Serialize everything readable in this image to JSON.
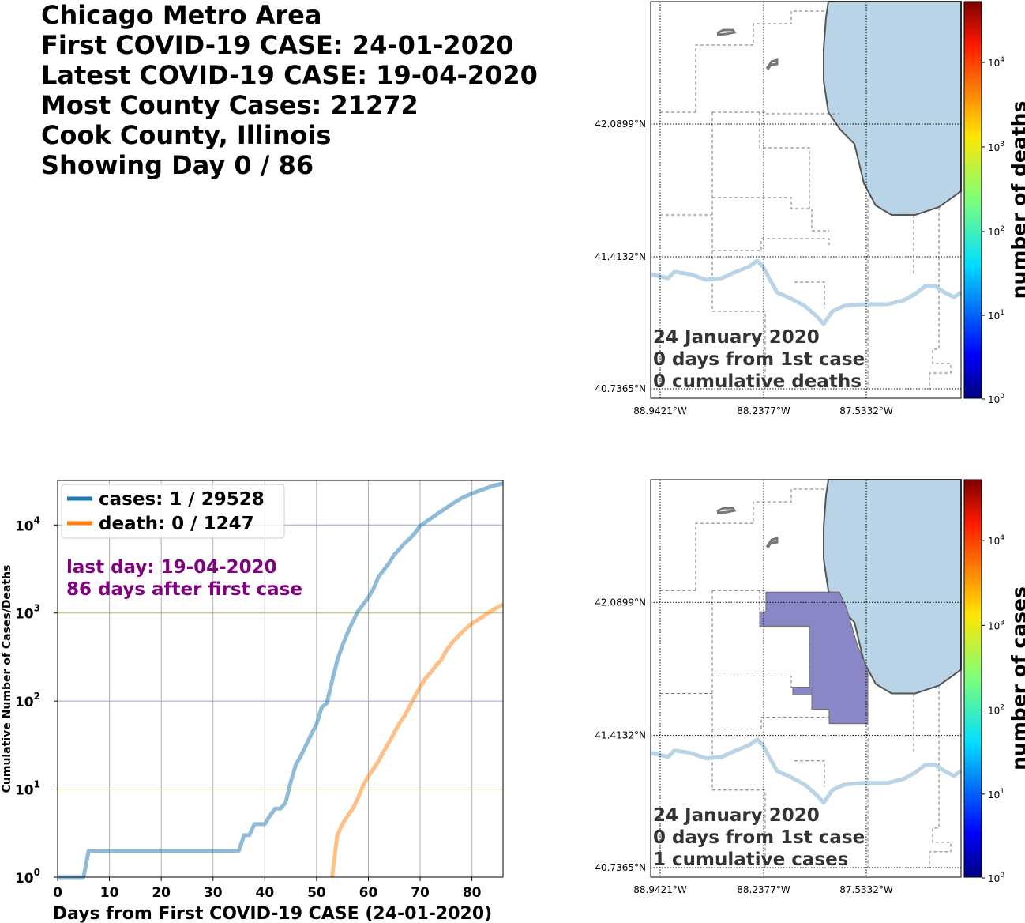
{
  "header": {
    "lines": [
      "Chicago Metro Area",
      "First COVID-19 CASE: 24-01-2020",
      "Latest COVID-19 CASE: 19-04-2020",
      "Most County Cases: 21272",
      "Cook County, Illinois",
      "Showing Day 0 / 86"
    ]
  },
  "maps": [
    {
      "lat_labels": [
        "42.0899°N",
        "41.4132°N",
        "40.7365°N"
      ],
      "lon_labels": [
        "88.9421°W",
        "88.2377°W",
        "87.5332°W"
      ],
      "overlay": [
        "24 January 2020",
        "0 days from 1st case",
        "0 cumulative deaths"
      ],
      "colorbar_label": "number of deaths",
      "colorbar_ticks": [
        "10",
        "10",
        "10",
        "10",
        "10"
      ],
      "colorbar_exps": [
        "0",
        "1",
        "2",
        "3",
        "4"
      ],
      "highlight_county": false
    },
    {
      "lat_labels": [
        "42.0899°N",
        "41.4132°N",
        "40.7365°N"
      ],
      "lon_labels": [
        "88.9421°W",
        "88.2377°W",
        "87.5332°W"
      ],
      "overlay": [
        "24 January 2020",
        "0 days from 1st case",
        "1 cumulative cases"
      ],
      "colorbar_label": "number of cases",
      "colorbar_ticks": [
        "10",
        "10",
        "10",
        "10",
        "10"
      ],
      "colorbar_exps": [
        "0",
        "1",
        "2",
        "3",
        "4"
      ],
      "highlight_county": true,
      "highlight_color": "#8a87c7"
    }
  ],
  "chart_data": {
    "type": "line",
    "xlabel": "Days from First COVID-19 CASE (24-01-2020)",
    "ylabel": "Cumulative Number of Cases/Deaths",
    "xlim": [
      0,
      86
    ],
    "ylim": [
      1,
      32000
    ],
    "yscale": "log",
    "grid": true,
    "xticks": [
      0,
      10,
      20,
      30,
      40,
      50,
      60,
      70,
      80
    ],
    "yticks": [
      1,
      10,
      100,
      1000,
      10000
    ],
    "ytick_exps": [
      "0",
      "1",
      "2",
      "3",
      "4"
    ],
    "legend_position": "top-left",
    "annotation": [
      "last day: 19-04-2020",
      "86 days after first case"
    ],
    "annotation_color": "#800080",
    "series": [
      {
        "name": "cases: 1 / 29528",
        "color": "#1f77b4",
        "x": [
          0,
          5,
          6,
          35,
          36,
          37,
          38,
          40,
          41,
          42,
          43,
          44,
          45,
          46,
          47,
          48,
          49,
          50,
          51,
          52,
          53,
          54,
          55,
          56,
          57,
          58,
          59,
          60,
          61,
          62,
          63,
          64,
          65,
          66,
          67,
          68,
          69,
          70,
          72,
          74,
          76,
          78,
          80,
          82,
          84,
          86
        ],
        "y": [
          1,
          1,
          2,
          2,
          3,
          3,
          4,
          4,
          5,
          6,
          6,
          7,
          12,
          19,
          24,
          32,
          42,
          55,
          85,
          95,
          170,
          290,
          430,
          600,
          800,
          1050,
          1250,
          1500,
          1900,
          2600,
          3100,
          3700,
          4600,
          5300,
          6200,
          7000,
          8100,
          9800,
          11800,
          14200,
          17000,
          20200,
          22800,
          25200,
          27800,
          29528
        ]
      },
      {
        "name": "death: 0 / 1247",
        "color": "#ff7f0e",
        "x": [
          53,
          54,
          55,
          56,
          57,
          58,
          59,
          60,
          61,
          62,
          63,
          64,
          65,
          66,
          67,
          68,
          69,
          70,
          71,
          72,
          73,
          74,
          75,
          76,
          78,
          80,
          82,
          84,
          86
        ],
        "y": [
          1,
          3,
          4,
          5,
          6,
          8,
          11,
          14,
          17,
          21,
          27,
          34,
          44,
          56,
          68,
          88,
          113,
          145,
          180,
          210,
          250,
          290,
          370,
          450,
          600,
          760,
          900,
          1080,
          1247
        ]
      }
    ]
  }
}
